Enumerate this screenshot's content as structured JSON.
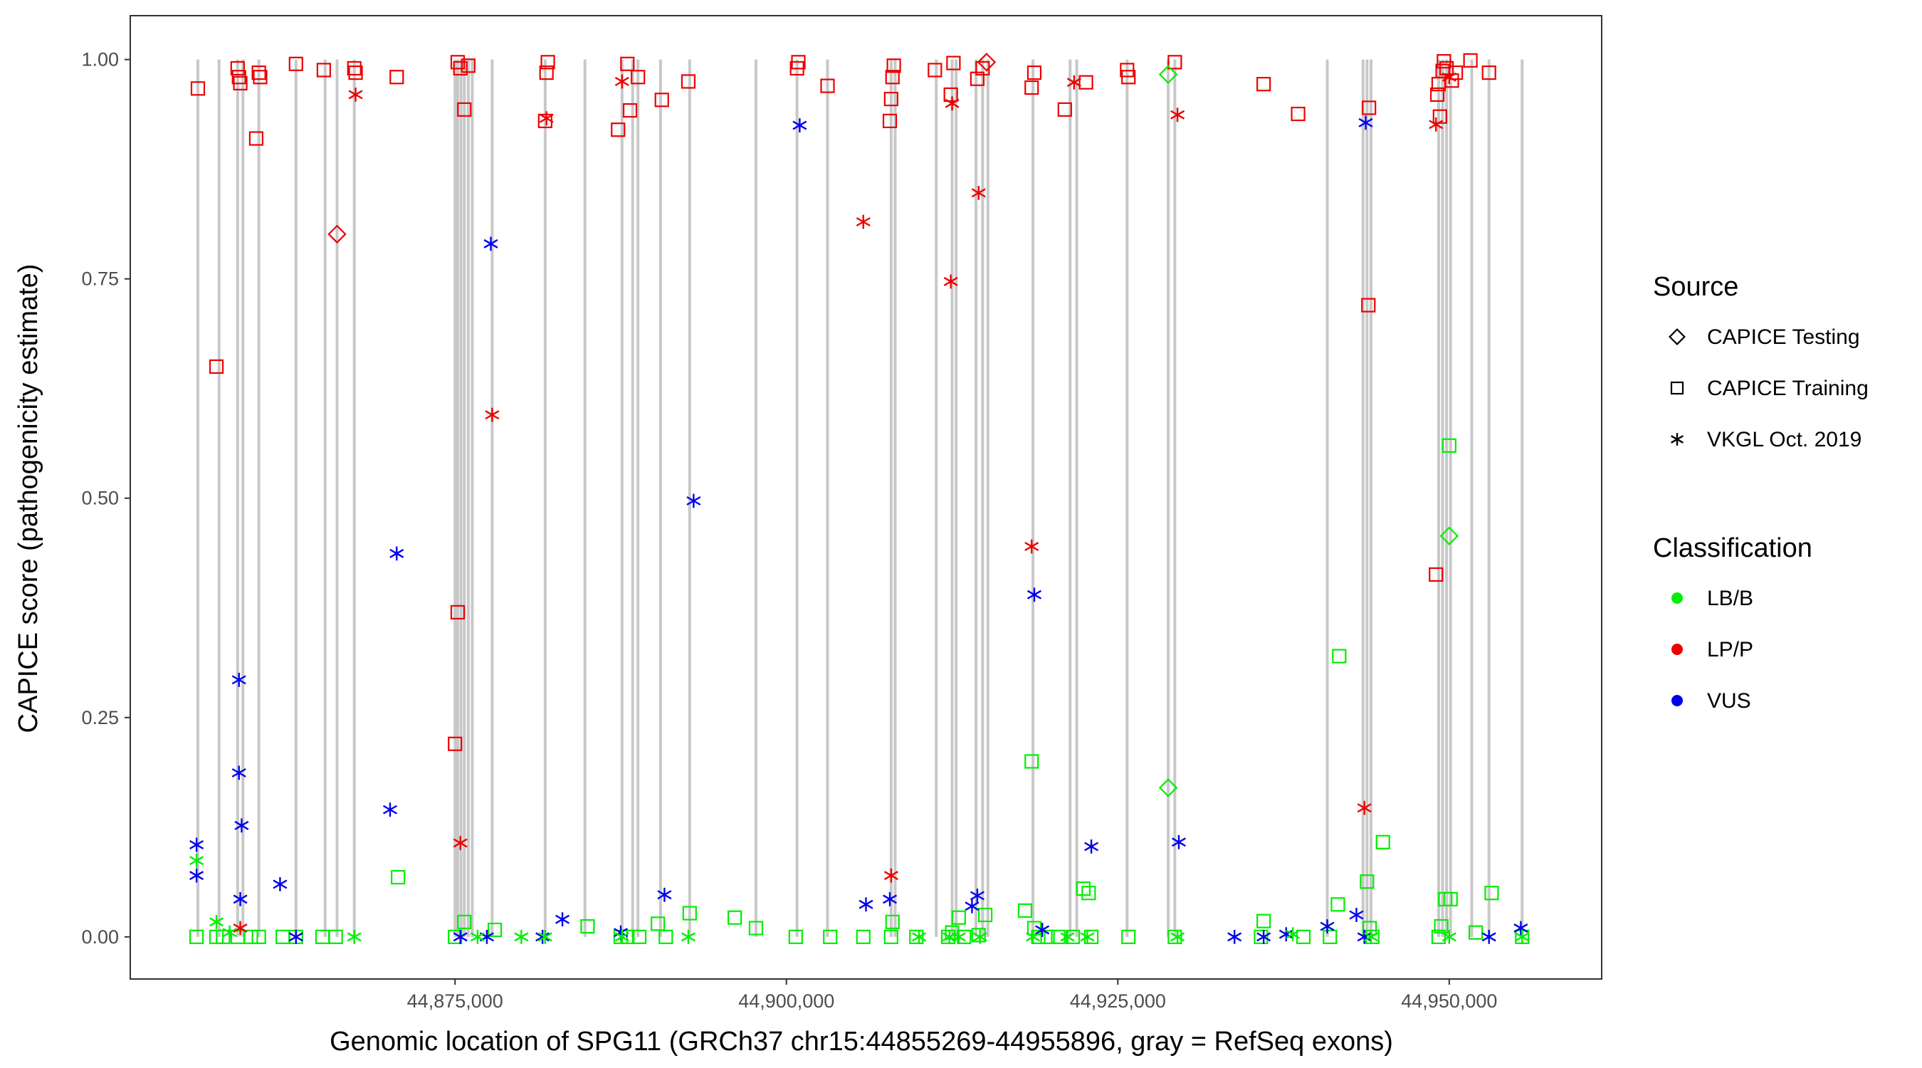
{
  "chart_data": {
    "type": "scatter",
    "xlabel": "Genomic location of SPG11 (GRCh37 chr15:44855269-44955896, gray = RefSeq exons)",
    "ylabel": "CAPICE score (pathogenicity estimate)",
    "xlim": [
      44850500,
      44961500
    ],
    "ylim": [
      -0.048,
      1.05
    ],
    "x_ticks": [
      44875000,
      44900000,
      44925000,
      44950000
    ],
    "x_tick_labels": [
      "44,875,000",
      "44,900,000",
      "44,925,000",
      "44,950,000"
    ],
    "y_ticks": [
      0,
      0.25,
      0.5,
      0.75,
      1.0
    ],
    "y_tick_labels": [
      "0.00",
      "0.25",
      "0.50",
      "0.75",
      "1.00"
    ],
    "grid": false,
    "exons": [
      44855600,
      44857200,
      44858600,
      44859000,
      44860200,
      44863000,
      44865200,
      44866100,
      44867400,
      44875000,
      44875200,
      44875450,
      44875700,
      44876000,
      44876300,
      44877800,
      44881800,
      44884800,
      44887600,
      44888400,
      44888800,
      44890500,
      44892700,
      44897700,
      44900800,
      44903100,
      44907900,
      44908200,
      44911300,
      44912500,
      44912800,
      44914300,
      44914800,
      44915200,
      44918600,
      44921400,
      44921900,
      44925700,
      44928800,
      44929300,
      44940800,
      44943500,
      44943800,
      44944100,
      44949200,
      44949500,
      44949800,
      44950100,
      44951700,
      44953000,
      44955500
    ],
    "legend": {
      "source": {
        "title": "Source",
        "entries": [
          {
            "label": "CAPICE Testing",
            "shape": "diamond"
          },
          {
            "label": "CAPICE Training",
            "shape": "square"
          },
          {
            "label": "VKGL Oct. 2019",
            "shape": "asterisk"
          }
        ]
      },
      "classification": {
        "title": "Classification",
        "entries": [
          {
            "label": "LB/B",
            "color": "#00ee00"
          },
          {
            "label": "LP/P",
            "color": "#ee0000"
          },
          {
            "label": "VUS",
            "color": "#0000ee"
          }
        ]
      }
    },
    "series": [
      {
        "name": "CAPICE Training LP/P",
        "shape": "square",
        "color": "#ee0000",
        "x": [
          44855600,
          44857000,
          44858600,
          44858700,
          44858800,
          44860000,
          44860200,
          44860300,
          44863000,
          44865100,
          44867400,
          44867500,
          44870600,
          44875000,
          44875200,
          44875200,
          44875400,
          44875700,
          44876000,
          44881800,
          44881900,
          44882000,
          44887300,
          44888000,
          44888200,
          44888800,
          44890600,
          44892600,
          44900800,
          44900900,
          44903100,
          44907800,
          44907900,
          44908000,
          44908100,
          44911200,
          44912400,
          44912600,
          44914400,
          44914800,
          44918500,
          44918700,
          44921000,
          44922600,
          44925700,
          44925800,
          44929300,
          44936000,
          44938600,
          44943900,
          44943950,
          44949000,
          44949100,
          44949200,
          44949300,
          44949500,
          44949600,
          44949800,
          44950200,
          44950500,
          44951600,
          44953000
        ],
        "y": [
          0.967,
          0.65,
          0.99,
          0.98,
          0.973,
          0.91,
          0.985,
          0.98,
          0.995,
          0.988,
          0.99,
          0.985,
          0.98,
          0.22,
          0.37,
          0.997,
          0.99,
          0.943,
          0.993,
          0.93,
          0.985,
          0.997,
          0.92,
          0.995,
          0.942,
          0.98,
          0.954,
          0.975,
          0.99,
          0.997,
          0.97,
          0.93,
          0.955,
          0.98,
          0.993,
          0.988,
          0.96,
          0.996,
          0.978,
          0.99,
          0.968,
          0.985,
          0.943,
          0.974,
          0.988,
          0.98,
          0.997,
          0.972,
          0.938,
          0.72,
          0.945,
          0.413,
          0.96,
          0.972,
          0.935,
          0.987,
          0.998,
          0.99,
          0.976,
          0.985,
          0.999,
          0.985
        ]
      },
      {
        "name": "CAPICE Training LB/B",
        "shape": "square",
        "color": "#00ee00",
        "x": [
          44855500,
          44857000,
          44857500,
          44858600,
          44859600,
          44860200,
          44862000,
          44863000,
          44865000,
          44866000,
          44870700,
          44875000,
          44875700,
          44878000,
          44885000,
          44887500,
          44888000,
          44888900,
          44890300,
          44890900,
          44892700,
          44896100,
          44897700,
          44900700,
          44903300,
          44905800,
          44907900,
          44908000,
          44909800,
          44912200,
          44912500,
          44913000,
          44913400,
          44914500,
          44915000,
          44918000,
          44918500,
          44918700,
          44919000,
          44919700,
          44920500,
          44921600,
          44922400,
          44922800,
          44923000,
          44925800,
          44929300,
          44935800,
          44936000,
          44939000,
          44941000,
          44941600,
          44941700,
          44943800,
          44944000,
          44944200,
          44945000,
          44949200,
          44949400,
          44949700,
          44950000,
          44950100,
          44952000,
          44953200,
          44955500
        ],
        "y": [
          0.0,
          0.0,
          0.0,
          0.0,
          0.0,
          0.0,
          0.0,
          0.0,
          0.0,
          0.0,
          0.068,
          0.0,
          0.017,
          0.008,
          0.012,
          0.0,
          0.0,
          0.0,
          0.015,
          0.0,
          0.027,
          0.022,
          0.01,
          0.0,
          0.0,
          0.0,
          0.0,
          0.017,
          0.0,
          0.0,
          0.005,
          0.022,
          0.0,
          0.002,
          0.025,
          0.03,
          0.2,
          0.01,
          0.0,
          0.0,
          0.0,
          0.0,
          0.055,
          0.05,
          0.0,
          0.0,
          0.0,
          0.0,
          0.018,
          0.0,
          0.0,
          0.037,
          0.32,
          0.063,
          0.01,
          0.0,
          0.108,
          0.0,
          0.012,
          0.043,
          0.56,
          0.043,
          0.005,
          0.05,
          0.0
        ]
      },
      {
        "name": "CAPICE Testing LP/P",
        "shape": "diamond",
        "color": "#ee0000",
        "x": [
          44866100,
          44915100
        ],
        "y": [
          0.801,
          0.997
        ]
      },
      {
        "name": "CAPICE Testing LB/B",
        "shape": "diamond",
        "color": "#00ee00",
        "x": [
          44928800,
          44928800,
          44950000
        ],
        "y": [
          0.983,
          0.17,
          0.457
        ]
      },
      {
        "name": "VKGL Oct. 2019 LP/P",
        "shape": "asterisk",
        "color": "#ee0000",
        "x": [
          44858800,
          44867500,
          44875400,
          44877800,
          44881900,
          44887600,
          44905800,
          44907900,
          44912400,
          44912500,
          44914500,
          44918500,
          44921700,
          44929500,
          44943600,
          44949000,
          44950000
        ],
        "y": [
          0.01,
          0.96,
          0.107,
          0.595,
          0.933,
          0.975,
          0.815,
          0.07,
          0.747,
          0.95,
          0.848,
          0.445,
          0.974,
          0.937,
          0.147,
          0.926,
          0.98
        ]
      },
      {
        "name": "VKGL Oct. 2019 VUS",
        "shape": "asterisk",
        "color": "#0000ee",
        "x": [
          44855500,
          44855500,
          44858700,
          44858700,
          44858800,
          44858900,
          44861800,
          44863000,
          44870100,
          44870600,
          44875400,
          44877400,
          44877700,
          44881600,
          44883100,
          44887500,
          44890800,
          44893000,
          44901000,
          44906000,
          44907800,
          44914000,
          44914400,
          44918700,
          44919300,
          44923000,
          44929600,
          44933800,
          44936000,
          44937700,
          44940800,
          44943000,
          44943600,
          44943700,
          44953000,
          44955400
        ],
        "y": [
          0.105,
          0.07,
          0.293,
          0.187,
          0.043,
          0.127,
          0.06,
          0.0,
          0.145,
          0.437,
          0.0,
          0.0,
          0.79,
          0.0,
          0.02,
          0.005,
          0.048,
          0.497,
          0.925,
          0.037,
          0.043,
          0.035,
          0.047,
          0.39,
          0.008,
          0.103,
          0.108,
          0.0,
          0.0,
          0.003,
          0.012,
          0.025,
          0.0,
          0.928,
          0.0,
          0.01
        ]
      },
      {
        "name": "VKGL Oct. 2019 LB/B",
        "shape": "asterisk",
        "color": "#00ee00",
        "x": [
          44855500,
          44857000,
          44858000,
          44867400,
          44876700,
          44880000,
          44881800,
          44887600,
          44892600,
          44910000,
          44912300,
          44913000,
          44914600,
          44918600,
          44921200,
          44922700,
          44929500,
          44938200,
          44944100,
          44950000,
          44955500
        ],
        "y": [
          0.087,
          0.017,
          0.005,
          0.0,
          0.0,
          0.0,
          0.0,
          0.0,
          0.0,
          0.0,
          0.0,
          0.0,
          0.0,
          0.0,
          0.0,
          0.0,
          0.0,
          0.003,
          0.0,
          0.0,
          0.0
        ]
      }
    ]
  }
}
